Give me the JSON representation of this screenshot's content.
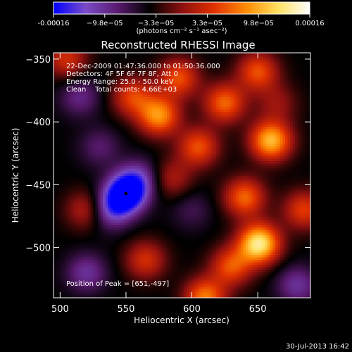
{
  "chart_data": {
    "type": "heatmap",
    "title": "Reconstructed RHESSI Image",
    "colorbar": {
      "ticks": [
        "-0.00016",
        "−9.8e−05",
        "−3.3e−05",
        "3.3e−05",
        "9.8e−05",
        "0.00016"
      ],
      "unit_label": "(photons cm⁻² s⁻¹ asec⁻²)",
      "range": [
        -0.00016,
        0.00016
      ],
      "colors": [
        "#0000ff",
        "#7a4cc8",
        "#5a1a70",
        "#000000",
        "#8c1010",
        "#e03000",
        "#ff8a00",
        "#ffe060",
        "#ffffff"
      ]
    },
    "xlabel": "Heliocentric X (arcsec)",
    "ylabel": "Heliocentric Y (arcsec)",
    "xlim": [
      495,
      690
    ],
    "ylim": [
      -540,
      -345
    ],
    "xticks": [
      500,
      550,
      600,
      650
    ],
    "yticks": [
      -350,
      -400,
      -450,
      -500
    ],
    "annotations": [
      "22-Dec-2009 01:47:36.000 to 01:50:36.000",
      "Detectors: 4F 5F 6F 7F 8F, Att 0",
      "Energy Range: 25.0 - 50.0 keV",
      "Clean    Total counts: 4.66E+03"
    ],
    "peak_label": "Position of Peak = [651,-497]",
    "peak": [
      651,
      -497
    ],
    "sources": [
      {
        "x": 550,
        "y": -457,
        "value": -0.00016
      },
      {
        "x": 538,
        "y": -470,
        "value": -9e-05
      },
      {
        "x": 560,
        "y": -445,
        "value": -7e-05
      },
      {
        "x": 520,
        "y": -470,
        "value": 5e-05
      },
      {
        "x": 515,
        "y": -380,
        "value": -6e-05
      },
      {
        "x": 520,
        "y": -520,
        "value": -7e-05
      },
      {
        "x": 665,
        "y": -385,
        "value": 3e-05
      },
      {
        "x": 680,
        "y": -530,
        "value": -7e-05
      },
      {
        "x": 605,
        "y": -420,
        "value": 8e-05
      },
      {
        "x": 575,
        "y": -395,
        "value": 0.00011
      },
      {
        "x": 555,
        "y": -380,
        "value": 7e-05
      },
      {
        "x": 590,
        "y": -365,
        "value": 8e-05
      },
      {
        "x": 625,
        "y": -385,
        "value": 9e-05
      },
      {
        "x": 650,
        "y": -360,
        "value": 8e-05
      },
      {
        "x": 660,
        "y": -415,
        "value": 0.00013
      },
      {
        "x": 640,
        "y": -460,
        "value": 9e-05
      },
      {
        "x": 651,
        "y": -497,
        "value": 0.00016
      },
      {
        "x": 630,
        "y": -515,
        "value": 8e-05
      },
      {
        "x": 610,
        "y": -540,
        "value": 0.0001
      },
      {
        "x": 565,
        "y": -510,
        "value": 6e-05
      },
      {
        "x": 685,
        "y": -470,
        "value": 7e-05
      },
      {
        "x": 600,
        "y": -470,
        "value": -4e-05
      },
      {
        "x": 530,
        "y": -420,
        "value": -5e-05
      },
      {
        "x": 585,
        "y": -445,
        "value": 4e-05
      },
      {
        "x": 505,
        "y": -350,
        "value": 6e-05
      }
    ]
  },
  "footer": {
    "timestamp": "30-Jul-2013 16:42"
  }
}
